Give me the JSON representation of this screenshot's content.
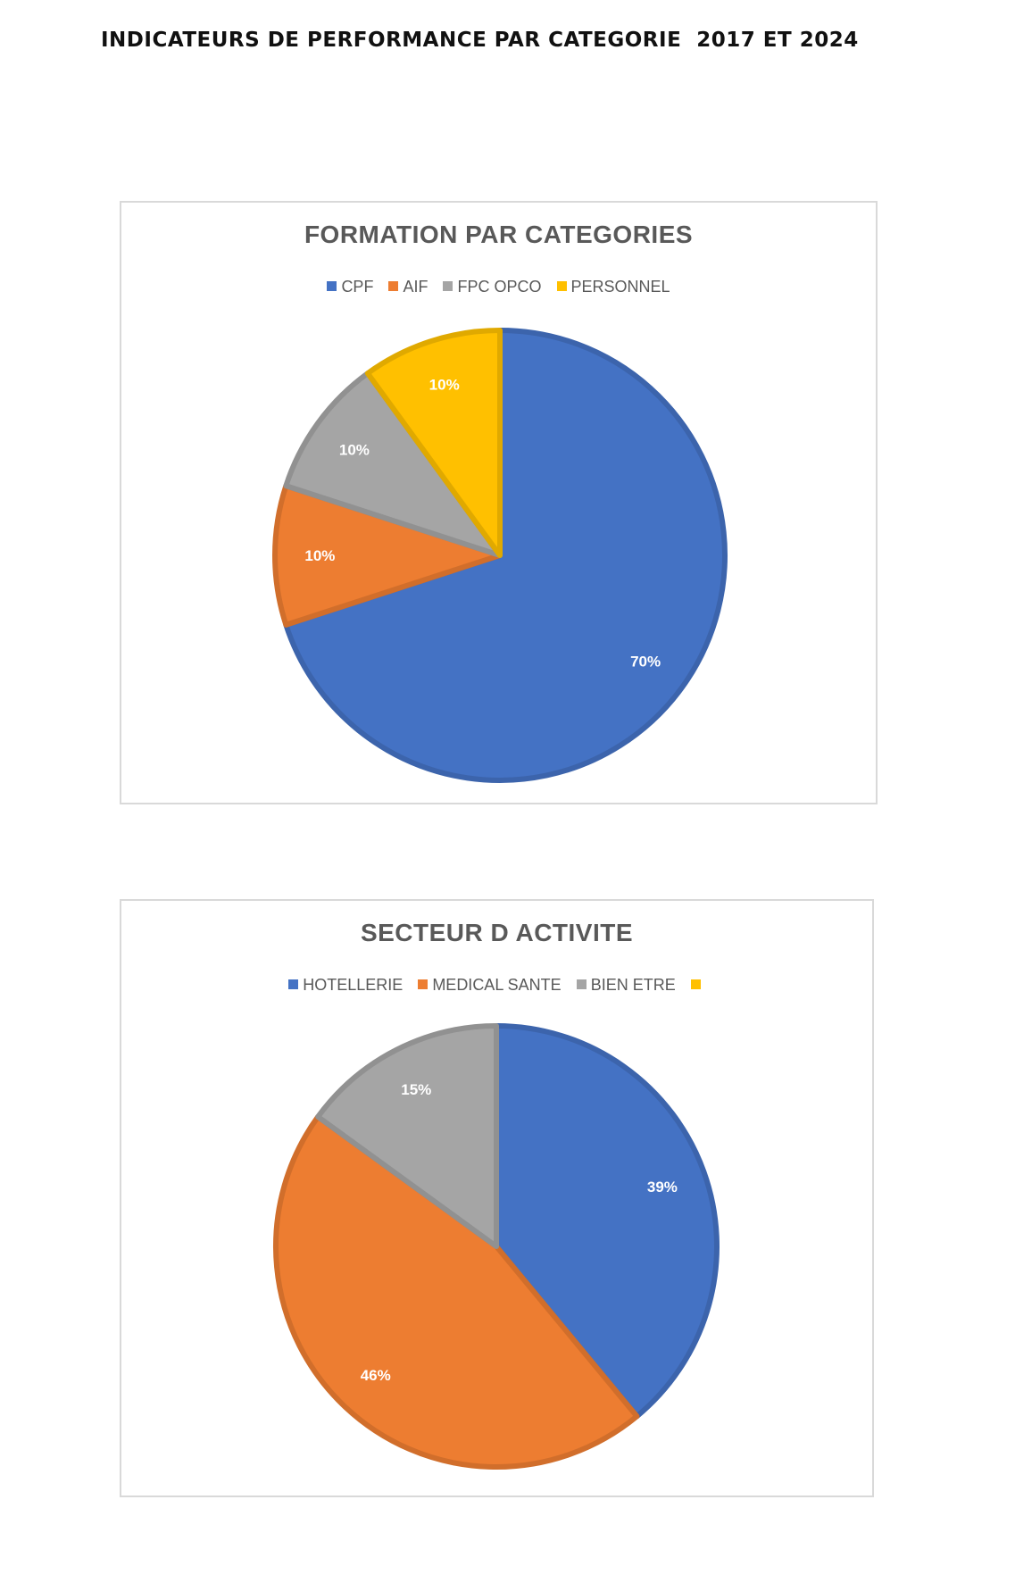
{
  "page": {
    "title": "INDICATEURS DE PERFORMANCE PAR CATEGORIE  2017 ET 2024"
  },
  "chart_data": [
    {
      "type": "pie",
      "title": "FORMATION PAR CATEGORIES",
      "legend_position": "top",
      "categories": [
        "CPF",
        "AIF",
        "FPC OPCO",
        "PERSONNEL"
      ],
      "values": [
        70,
        10,
        10,
        10
      ],
      "labels": [
        "70%",
        "10%",
        "10%",
        "10%"
      ],
      "colors": [
        "#4472c4",
        "#ed7d31",
        "#a5a5a5",
        "#ffc000"
      ]
    },
    {
      "type": "pie",
      "title": "SECTEUR D ACTIVITE",
      "legend_position": "top",
      "categories": [
        "HOTELLERIE",
        "MEDICAL SANTE",
        "BIEN ETRE",
        ""
      ],
      "values": [
        39,
        46,
        15,
        0
      ],
      "labels": [
        "39%",
        "46%",
        "15%",
        ""
      ],
      "colors": [
        "#4472c4",
        "#ed7d31",
        "#a5a5a5",
        "#ffc000"
      ]
    }
  ]
}
